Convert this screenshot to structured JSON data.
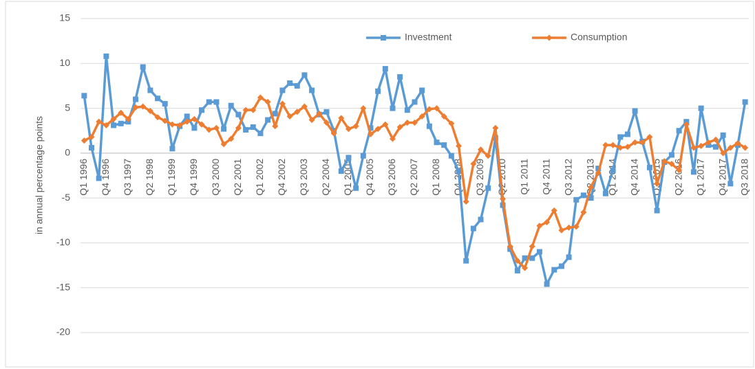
{
  "chart_data": {
    "type": "line",
    "y_label": "in annual percentage points",
    "categories": [
      "Q1 1996",
      null,
      null,
      "Q4 1996",
      null,
      null,
      "Q3 1997",
      null,
      null,
      "Q2 1998",
      null,
      null,
      "Q1 1999",
      null,
      null,
      "Q4 1999",
      null,
      null,
      "Q3 2000",
      null,
      null,
      "Q2 2001",
      null,
      null,
      "Q1 2002",
      null,
      null,
      "Q4 2002",
      null,
      null,
      "Q3 2003",
      null,
      null,
      "Q2 2004",
      null,
      null,
      "Q1 2005",
      null,
      null,
      "Q4 2005",
      null,
      null,
      "Q3 2006",
      null,
      null,
      "Q2 2007",
      null,
      null,
      "Q1 2008",
      null,
      null,
      "Q4 2008",
      null,
      null,
      "Q3 2009",
      null,
      null,
      "Q2 2010",
      null,
      null,
      "Q1 2011",
      null,
      null,
      "Q4 2011",
      null,
      null,
      "Q3 2012",
      null,
      null,
      "Q2 2013",
      null,
      null,
      "Q1 2014",
      null,
      null,
      "Q4 2014",
      null,
      null,
      "Q3 2015",
      null,
      null,
      "Q2 2016",
      null,
      null,
      "Q1 2017",
      null,
      null,
      "Q4 2017",
      null,
      null,
      "Q3 2018"
    ],
    "series": [
      {
        "name": "Investment",
        "color": "#5b9bd5",
        "marker": "square",
        "values": [
          6.4,
          0.6,
          -2.8,
          10.8,
          3.1,
          3.3,
          3.5,
          6.0,
          9.6,
          7.0,
          6.1,
          5.5,
          0.5,
          3.0,
          4.1,
          2.8,
          4.8,
          5.7,
          5.7,
          2.7,
          5.3,
          4.3,
          2.6,
          2.9,
          2.2,
          3.7,
          4.4,
          7.0,
          7.8,
          7.5,
          8.7,
          7.0,
          4.3,
          4.6,
          2.5,
          -2.0,
          -0.5,
          -3.9,
          -0.3,
          2.8,
          6.9,
          9.4,
          5.0,
          8.5,
          4.8,
          5.7,
          7.0,
          3.0,
          1.2,
          0.9,
          -0.3,
          -2.0,
          -12.0,
          -8.4,
          -7.4,
          -3.9,
          1.7,
          -5.8,
          -10.7,
          -13.1,
          -11.7,
          -11.7,
          -11.0,
          -14.6,
          -13.0,
          -12.6,
          -11.6,
          -5.2,
          -4.7,
          -5.0,
          -1.7,
          -4.5,
          -1.9,
          1.8,
          2.1,
          4.7,
          1.3,
          -1.6,
          -6.4,
          -1.0,
          -0.2,
          2.5,
          3.5,
          -2.1,
          5.0,
          0.9,
          0.7,
          2.0,
          -3.4,
          0.9,
          5.7
        ]
      },
      {
        "name": "Consumption",
        "color": "#ed7d31",
        "marker": "diamond",
        "values": [
          1.4,
          1.8,
          3.5,
          3.1,
          3.8,
          4.5,
          3.8,
          5.1,
          5.2,
          4.7,
          4.0,
          3.6,
          3.2,
          3.1,
          3.5,
          3.8,
          3.2,
          2.6,
          2.8,
          1.0,
          1.6,
          2.8,
          4.8,
          4.8,
          6.2,
          5.7,
          3.0,
          5.5,
          4.1,
          4.6,
          5.2,
          3.7,
          4.4,
          3.4,
          2.2,
          3.9,
          2.7,
          3.0,
          5.0,
          2.1,
          2.7,
          3.2,
          1.6,
          2.9,
          3.4,
          3.4,
          4.1,
          4.9,
          5.0,
          4.1,
          3.3,
          0.8,
          -5.4,
          -1.2,
          0.4,
          -0.3,
          2.8,
          -5.1,
          -10.4,
          -12.0,
          -12.8,
          -10.4,
          -8.1,
          -7.7,
          -6.4,
          -8.6,
          -8.3,
          -8.2,
          -6.6,
          -3.8,
          -2.2,
          0.9,
          0.9,
          0.6,
          0.7,
          1.2,
          1.2,
          1.8,
          -3.4,
          -0.9,
          -1.2,
          -1.9,
          3.2,
          0.6,
          0.8,
          1.2,
          1.5,
          0.0,
          0.6,
          1.1,
          0.6
        ]
      }
    ],
    "ylim": [
      -20,
      15
    ],
    "yticks": [
      15,
      10,
      5,
      0,
      -5,
      -10,
      -15,
      -20
    ],
    "grid": true,
    "legend": "top"
  }
}
